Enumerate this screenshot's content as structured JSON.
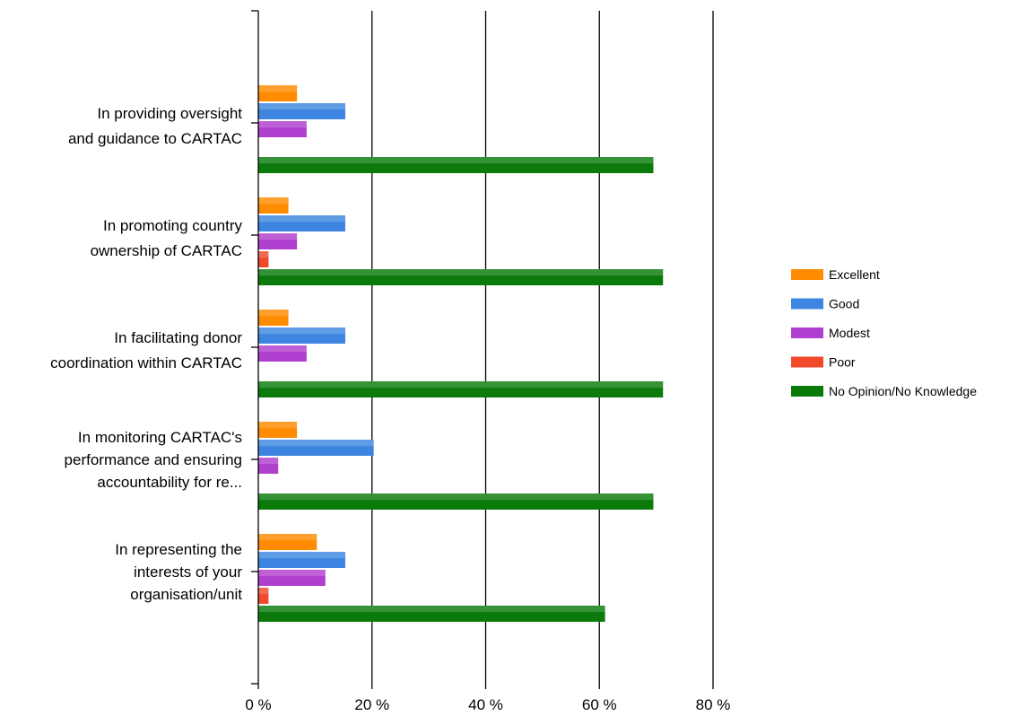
{
  "chart_data": {
    "type": "bar",
    "orientation": "horizontal",
    "title": "",
    "xlabel": "",
    "ylabel": "",
    "xlim": [
      0,
      80
    ],
    "x_ticks": [
      {
        "value": 0,
        "label": "0 %"
      },
      {
        "value": 20,
        "label": "20 %"
      },
      {
        "value": 40,
        "label": "40 %"
      },
      {
        "value": 60,
        "label": "60 %"
      },
      {
        "value": 80,
        "label": "80 %"
      }
    ],
    "grid": true,
    "legend_position": "right",
    "categories": [
      {
        "lines": [
          "In providing oversight",
          "and guidance to CARTAC"
        ]
      },
      {
        "lines": [
          "In promoting country",
          "ownership of CARTAC"
        ]
      },
      {
        "lines": [
          "In facilitating donor",
          "coordination within CARTAC"
        ]
      },
      {
        "lines": [
          "In monitoring CARTAC's",
          "performance and ensuring",
          "accountability for re..."
        ]
      },
      {
        "lines": [
          "In representing the",
          "interests of your",
          "organisation/unit"
        ]
      }
    ],
    "series": [
      {
        "name": "Excellent",
        "color": "#ff8c00",
        "values": [
          6.8,
          5.3,
          5.3,
          6.8,
          10.3
        ]
      },
      {
        "name": "Good",
        "color": "#3d85e0",
        "values": [
          15.3,
          15.3,
          15.3,
          20.3,
          15.3
        ]
      },
      {
        "name": "Modest",
        "color": "#b03fcf",
        "values": [
          8.5,
          6.8,
          8.5,
          3.5,
          11.8
        ]
      },
      {
        "name": "Poor",
        "color": "#f04a2a",
        "values": [
          0,
          1.8,
          0,
          0,
          1.8
        ]
      },
      {
        "name": "No Opinion/No Knowledge",
        "color": "#0a7a0a",
        "values": [
          69.5,
          71.2,
          71.2,
          69.5,
          61.0
        ]
      }
    ]
  }
}
